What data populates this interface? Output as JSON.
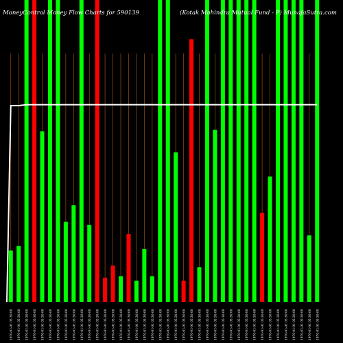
{
  "header": {
    "title_left": "MoneyControl Money Flow Charts for 590139",
    "title_right": "(Kotak Mahindra Mutual Fund - P) MunafaSutra.com"
  },
  "colors": {
    "background": "#000000",
    "up": "#00ff00",
    "down": "#ff0000",
    "price_line": "#ffffff",
    "grid": "#8b4513",
    "label": "#ffffff"
  },
  "chart_data": {
    "type": "bar",
    "title": "MoneyControl Money Flow Charts for 590139",
    "ylim": [
      0,
      100
    ],
    "grid": "vertical",
    "categories": [
      "1970-01-01 05:30",
      "1970-01-01 05:30",
      "1970-01-01 05:30",
      "1970-01-01 05:30",
      "1970-01-01 05:30",
      "1970-01-01 05:30",
      "1970-01-01 05:30",
      "1970-01-01 05:30",
      "1970-01-01 05:30",
      "1970-01-01 05:30",
      "1970-01-01 05:30",
      "1970-01-01 05:30",
      "1970-01-01 05:30",
      "1970-01-01 05:30",
      "1970-01-01 05:30",
      "1970-01-01 05:30",
      "1970-01-01 05:30",
      "1970-01-01 05:30",
      "1970-01-01 05:30",
      "1970-01-01 05:30",
      "1970-01-01 05:30",
      "1970-01-01 05:30",
      "1970-01-01 05:30",
      "1970-01-01 05:30",
      "1970-01-01 05:30",
      "1970-01-01 05:30",
      "1970-01-01 05:30",
      "1970-01-01 05:30",
      "1970-01-01 05:30",
      "1970-01-01 05:30",
      "1970-01-01 05:30",
      "1970-01-01 05:30",
      "1970-01-01 05:30",
      "1970-01-01 05:30",
      "1970-01-01 05:30",
      "1970-01-01 05:30",
      "1970-01-01 05:30",
      "1970-01-01 05:30",
      "1970-01-01 05:30",
      "1970-01-01 05:30"
    ],
    "x_labels": [
      "1970-01-01 05:30:00",
      "1970-01-01 05:30:00",
      "1970-01-01 05:30:00",
      "1970-01-01 05:30:00",
      "1970-01-01 05:30:00",
      "1970-01-01 05:30:00",
      "1970-01-01 05:30:00",
      "1970-01-01 05:30:00",
      "1970-01-01 05:30:00",
      "1970-01-01 05:30:00",
      "1970-01-01 05:30:00",
      "1970-01-01 05:30:00",
      "1970-01-01 05:30:00",
      "1970-01-01 05:30:00",
      "1970-01-01 05:30:00",
      "1970-01-01 05:30:00",
      "1970-01-01 05:30:00",
      "1970-01-01 05:30:00",
      "1970-01-01 05:30:00",
      "1970-01-01 05:30:00",
      "1970-01-01 05:30:00",
      "1970-01-01 05:30:00",
      "1970-01-01 05:30:00",
      "1970-01-01 05:30:00",
      "1970-01-01 05:30:00",
      "1970-01-01 05:30:00",
      "1970-01-01 05:30:00",
      "1970-01-01 05:30:00",
      "1970-01-01 05:30:00",
      "1970-01-01 05:30:00",
      "1970-01-01 05:30:00",
      "1970-01-01 05:30:00",
      "1970-01-01 05:30:00",
      "1970-01-01 05:30:00",
      "1970-01-01 05:30:00",
      "1970-01-01 05:30:00",
      "1970-01-01 05:30:00",
      "1970-01-01 05:30:00",
      "1970-01-01 05:30:00",
      "1970-01-01 05:30:00"
    ],
    "values": [
      17,
      18.5,
      100,
      100,
      56.5,
      100,
      100,
      26.5,
      32,
      100,
      25.5,
      100,
      8,
      12,
      8.5,
      22.5,
      7,
      17.5,
      8.5,
      100,
      100,
      49.5,
      7,
      87,
      11.5,
      100,
      57,
      100,
      100,
      100,
      100,
      100,
      29.5,
      41.5,
      100,
      100,
      100,
      100,
      22,
      100
    ],
    "directions": [
      "up",
      "up",
      "up",
      "down",
      "up",
      "up",
      "up",
      "up",
      "up",
      "up",
      "up",
      "down",
      "down",
      "down",
      "up",
      "down",
      "up",
      "up",
      "up",
      "up",
      "up",
      "up",
      "down",
      "down",
      "up",
      "up",
      "up",
      "up",
      "up",
      "up",
      "up",
      "up",
      "down",
      "up",
      "up",
      "up",
      "up",
      "up",
      "up",
      "up"
    ],
    "price_line": [
      65,
      65,
      65.3,
      65.3,
      65.3,
      65.3,
      65.3,
      65.3,
      65.3,
      65.3,
      65.3,
      65.3,
      65.3,
      65.3,
      65.3,
      65.3,
      65.3,
      65.3,
      65.3,
      65.3,
      65.3,
      65.3,
      65.3,
      65.3,
      65.3,
      65.3,
      65.3,
      65.3,
      65.3,
      65.3,
      65.3,
      65.3,
      65.3,
      65.3,
      65.3,
      65.3,
      65.3,
      65.3,
      65.3,
      65.3
    ],
    "price_line_start": 0
  }
}
